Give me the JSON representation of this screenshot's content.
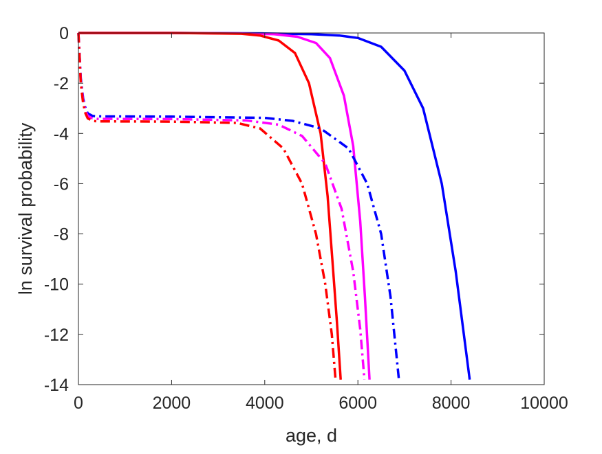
{
  "chart_data": {
    "type": "line",
    "title": "",
    "xlabel": "age, d",
    "ylabel": "ln survival probability",
    "xlim": [
      0,
      10000
    ],
    "ylim": [
      -14,
      0
    ],
    "xticks": [
      0,
      2000,
      4000,
      6000,
      8000,
      10000
    ],
    "yticks": [
      0,
      -2,
      -4,
      -6,
      -8,
      -10,
      -12,
      -14
    ],
    "xtick_labels": [
      "0",
      "2000",
      "4000",
      "6000",
      "8000",
      "10000"
    ],
    "ytick_labels": [
      "0",
      "-2",
      "-4",
      "-6",
      "-8",
      "-10",
      "-12",
      "-14"
    ],
    "grid": false,
    "legend": "none",
    "series": [
      {
        "color": "#0000ff",
        "dash": "solid",
        "x": [
          0,
          2000,
          4000,
          5000,
          5600,
          6000,
          6500,
          7000,
          7400,
          7800,
          8100,
          8400
        ],
        "y": [
          0,
          0,
          -0.02,
          -0.05,
          -0.1,
          -0.2,
          -0.55,
          -1.5,
          -3.0,
          -6.0,
          -9.5,
          -13.8
        ]
      },
      {
        "color": "#ff00ff",
        "dash": "solid",
        "x": [
          0,
          2000,
          3500,
          4200,
          4700,
          5100,
          5400,
          5700,
          5900,
          6050,
          6150,
          6250
        ],
        "y": [
          0,
          0,
          -0.02,
          -0.05,
          -0.15,
          -0.4,
          -1.0,
          -2.5,
          -4.5,
          -7.5,
          -10.5,
          -13.8
        ]
      },
      {
        "color": "#ff0000",
        "dash": "solid",
        "x": [
          0,
          2000,
          3500,
          3900,
          4300,
          4650,
          4950,
          5200,
          5350,
          5450,
          5550,
          5630
        ],
        "y": [
          0,
          0,
          -0.03,
          -0.1,
          -0.3,
          -0.8,
          -2.0,
          -4.0,
          -6.5,
          -9.0,
          -11.5,
          -13.8
        ]
      },
      {
        "color": "#0000ff",
        "dash": "dashdot",
        "x": [
          0,
          50,
          100,
          150,
          200,
          300,
          400,
          2000,
          4000,
          4600,
          5200,
          5800,
          6200,
          6500,
          6700,
          6880
        ],
        "y": [
          0,
          -1.8,
          -2.6,
          -3.0,
          -3.2,
          -3.3,
          -3.32,
          -3.33,
          -3.38,
          -3.5,
          -3.8,
          -4.6,
          -6.0,
          -8.0,
          -10.5,
          -13.8
        ]
      },
      {
        "color": "#ff00ff",
        "dash": "dashdot",
        "x": [
          0,
          50,
          100,
          150,
          200,
          300,
          400,
          2000,
          3600,
          4300,
          4800,
          5300,
          5650,
          5900,
          6050,
          6140
        ],
        "y": [
          0,
          -1.9,
          -2.7,
          -3.1,
          -3.3,
          -3.4,
          -3.42,
          -3.43,
          -3.48,
          -3.65,
          -4.1,
          -5.2,
          -7.0,
          -9.5,
          -11.8,
          -13.8
        ]
      },
      {
        "color": "#ff0000",
        "dash": "dashdot",
        "x": [
          0,
          50,
          100,
          150,
          200,
          300,
          400,
          2000,
          3400,
          3900,
          4400,
          4800,
          5100,
          5300,
          5440,
          5520
        ],
        "y": [
          0,
          -2.0,
          -2.8,
          -3.2,
          -3.4,
          -3.5,
          -3.52,
          -3.53,
          -3.58,
          -3.8,
          -4.6,
          -6.0,
          -8.0,
          -10.0,
          -12.0,
          -13.8
        ]
      }
    ]
  }
}
